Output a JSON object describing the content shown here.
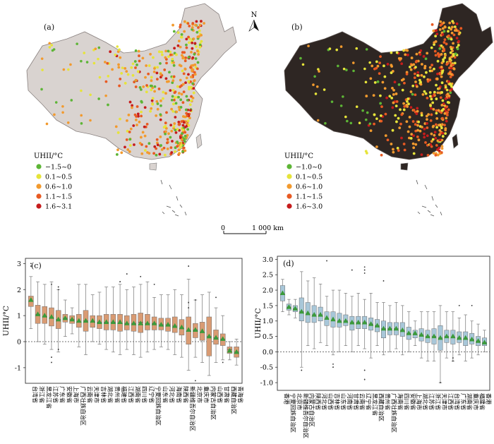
{
  "maps": [
    {
      "label": "(a)",
      "background": "#d9d3d0",
      "legend_title": "UHII/°C",
      "legend": [
        {
          "label": "−1.5~0",
          "color": "#5db536"
        },
        {
          "label": "0.1~0.5",
          "color": "#e6e43a"
        },
        {
          "label": "0.6~1.0",
          "color": "#f29a2e"
        },
        {
          "label": "1.1~1.5",
          "color": "#e85a22"
        },
        {
          "label": "1.6~3.1",
          "color": "#c61c1c"
        }
      ]
    },
    {
      "label": "(b)",
      "background": "#2e2623",
      "legend_title": "UHII/°C",
      "legend": [
        {
          "label": "−1.0~0",
          "color": "#5db536"
        },
        {
          "label": "0.1~0.5",
          "color": "#e6e43a"
        },
        {
          "label": "0.6~1.0",
          "color": "#f29a2e"
        },
        {
          "label": "1.1~1.5",
          "color": "#e85a22"
        },
        {
          "label": "1.6~3.0",
          "color": "#c61c1c"
        }
      ]
    }
  ],
  "north_label": "N",
  "scale_bar": {
    "start": "0",
    "end": "1 000 km"
  },
  "chart_data": [
    {
      "type": "box",
      "label": "(c)",
      "ylabel": "UHII/°C",
      "ylim": [
        -1.6,
        3.2
      ],
      "yticks": [
        -1,
        0,
        1,
        2,
        3
      ],
      "box_color": "#d99b73",
      "mean_color": "#3a9a3a",
      "categories": [
        "台湾省",
        "浙江省",
        "黑龙江省",
        "江苏省",
        "广东省",
        "安徽省",
        "上海市",
        "广西壮族自治区",
        "云南省",
        "天津市",
        "吉林省",
        "湖北省",
        "贵州省",
        "福建省",
        "江西省",
        "湖南省",
        "四川省",
        "辽宁省",
        "宁夏回族自治区",
        "山东省",
        "河北省",
        "海南省",
        "陕西省",
        "新疆维吾尔自治区",
        "北京市",
        "重庆市",
        "内蒙古自治区",
        "山西省",
        "甘肃省",
        "西藏自治区",
        "青海省"
      ],
      "boxes": [
        {
          "q1": 1.35,
          "median": 1.55,
          "q3": 1.75,
          "mean": 1.6,
          "low": 0.5,
          "high": 2.5
        },
        {
          "q1": 0.7,
          "median": 1.05,
          "q3": 1.4,
          "mean": 1.05,
          "low": 0.0,
          "high": 2.3
        },
        {
          "q1": 0.7,
          "median": 0.95,
          "q3": 1.35,
          "mean": 1.0,
          "low": -0.1,
          "high": 2.2
        },
        {
          "q1": 0.6,
          "median": 0.9,
          "q3": 1.3,
          "mean": 0.95,
          "low": -0.3,
          "high": 2.3
        },
        {
          "q1": 0.5,
          "median": 0.85,
          "q3": 1.2,
          "mean": 0.85,
          "low": -0.4,
          "high": 2.0
        },
        {
          "q1": 0.75,
          "median": 0.9,
          "q3": 1.05,
          "mean": 0.9,
          "low": 0.2,
          "high": 1.6
        },
        {
          "q1": 0.7,
          "median": 0.85,
          "q3": 1.0,
          "mean": 0.85,
          "low": 0.3,
          "high": 1.3
        },
        {
          "q1": 0.55,
          "median": 0.75,
          "q3": 1.05,
          "mean": 0.8,
          "low": -0.2,
          "high": 2.2
        },
        {
          "q1": 0.4,
          "median": 0.8,
          "q3": 1.2,
          "mean": 0.8,
          "low": -0.5,
          "high": 2.2
        },
        {
          "q1": 0.55,
          "median": 0.75,
          "q3": 1.0,
          "mean": 0.8,
          "low": 0.0,
          "high": 1.8
        },
        {
          "q1": 0.5,
          "median": 0.75,
          "q3": 1.0,
          "mean": 0.75,
          "low": -0.1,
          "high": 1.9
        },
        {
          "q1": 0.45,
          "median": 0.75,
          "q3": 1.05,
          "mean": 0.75,
          "low": -0.3,
          "high": 2.1
        },
        {
          "q1": 0.45,
          "median": 0.75,
          "q3": 1.05,
          "mean": 0.75,
          "low": -0.4,
          "high": 2.1
        },
        {
          "q1": 0.4,
          "median": 0.7,
          "q3": 1.05,
          "mean": 0.75,
          "low": -0.5,
          "high": 2.2
        },
        {
          "q1": 0.45,
          "median": 0.7,
          "q3": 1.0,
          "mean": 0.7,
          "low": -0.3,
          "high": 2.0
        },
        {
          "q1": 0.4,
          "median": 0.7,
          "q3": 1.05,
          "mean": 0.7,
          "low": -0.5,
          "high": 2.1
        },
        {
          "q1": 0.35,
          "median": 0.75,
          "q3": 1.1,
          "mean": 0.7,
          "low": -0.6,
          "high": 2.2
        },
        {
          "q1": 0.45,
          "median": 0.7,
          "q3": 1.05,
          "mean": 0.7,
          "low": -0.4,
          "high": 2.3
        },
        {
          "q1": 0.45,
          "median": 0.7,
          "q3": 0.95,
          "mean": 0.7,
          "low": -0.3,
          "high": 1.7
        },
        {
          "q1": 0.45,
          "median": 0.65,
          "q3": 0.9,
          "mean": 0.65,
          "low": -0.2,
          "high": 1.8
        },
        {
          "q1": 0.4,
          "median": 0.65,
          "q3": 0.9,
          "mean": 0.65,
          "low": -0.3,
          "high": 1.8
        },
        {
          "q1": 0.35,
          "median": 0.6,
          "q3": 0.95,
          "mean": 0.6,
          "low": -0.5,
          "high": 2.0
        },
        {
          "q1": 0.25,
          "median": 0.5,
          "q3": 0.85,
          "mean": 0.55,
          "low": -0.6,
          "high": 1.8
        },
        {
          "q1": -0.1,
          "median": 0.4,
          "q3": 0.95,
          "mean": 0.45,
          "low": -1.1,
          "high": 2.4
        },
        {
          "q1": 0.15,
          "median": 0.45,
          "q3": 0.7,
          "mean": 0.45,
          "low": -0.6,
          "high": 1.6
        },
        {
          "q1": 0.05,
          "median": 0.35,
          "q3": 0.75,
          "mean": 0.4,
          "low": -0.8,
          "high": 1.8
        },
        {
          "q1": -0.55,
          "median": 0.2,
          "q3": 0.95,
          "mean": 0.2,
          "low": -1.3,
          "high": 1.9
        },
        {
          "q1": -0.1,
          "median": 0.15,
          "q3": 0.45,
          "mean": 0.15,
          "low": -0.8,
          "high": 1.3
        },
        {
          "q1": -0.15,
          "median": 0.1,
          "q3": 0.3,
          "mean": 0.1,
          "low": -0.7,
          "high": 1.0
        },
        {
          "q1": -0.45,
          "median": -0.3,
          "q3": -0.2,
          "mean": -0.35,
          "low": -0.7,
          "high": 0.0
        },
        {
          "q1": -0.6,
          "median": -0.4,
          "q3": -0.2,
          "mean": -0.4,
          "low": -0.9,
          "high": 0.1
        }
      ],
      "outliers": [
        [
          0,
          3.0
        ],
        [
          0,
          2.9
        ],
        [
          3,
          2.2
        ],
        [
          3,
          -0.6
        ],
        [
          3,
          -0.8
        ],
        [
          4,
          2.1
        ],
        [
          4,
          2.0
        ],
        [
          4,
          -0.3
        ],
        [
          13,
          2.3
        ],
        [
          14,
          2.6
        ],
        [
          16,
          2.5
        ],
        [
          18,
          2.2
        ],
        [
          23,
          2.9
        ],
        [
          23,
          1.5
        ],
        [
          23,
          1.3
        ],
        [
          24,
          -1.5
        ],
        [
          24,
          1.6
        ],
        [
          27,
          1.7
        ],
        [
          28,
          -0.8
        ]
      ]
    },
    {
      "type": "box",
      "label": "(d)",
      "ylabel": "UHII/°C",
      "ylim": [
        -1.25,
        3.1
      ],
      "yticks": [
        -1.0,
        -0.5,
        0,
        0.5,
        1.0,
        1.5,
        2.0,
        2.5,
        3.0
      ],
      "box_color": "#a8c7d9",
      "mean_color": "#3a9a3a",
      "categories": [
        "香港",
        "宁夏回族自治区",
        "北京市",
        "新疆维吾尔自治区",
        "内蒙古自治区",
        "陕西省",
        "河北省",
        "山西省",
        "吉林省",
        "山东省",
        "河南省",
        "甘肃省",
        "云南省",
        "辽宁省",
        "黑龙江省",
        "西藏自治区",
        "贵州省",
        "广西壮族自治区",
        "海南省",
        "四川省",
        "安徽省",
        "上海市",
        "湖北省",
        "江苏省",
        "浙江省",
        "天津市",
        "江西省",
        "台湾省",
        "广东省",
        "湖南省",
        "重庆市",
        "福建省",
        "香港"
      ],
      "boxes": [
        {
          "q1": 1.65,
          "median": 1.85,
          "q3": 2.15,
          "mean": 1.9,
          "low": 1.3,
          "high": 2.35
        },
        {
          "q1": 1.35,
          "median": 1.45,
          "q3": 1.55,
          "mean": 1.45,
          "low": 1.2,
          "high": 1.7
        },
        {
          "q1": 1.3,
          "median": 1.4,
          "q3": 1.5,
          "mean": 1.4,
          "low": 1.1,
          "high": 1.7
        },
        {
          "q1": 1.0,
          "median": 1.3,
          "q3": 1.75,
          "mean": 1.3,
          "low": -0.5,
          "high": 2.6
        },
        {
          "q1": 0.95,
          "median": 1.2,
          "q3": 1.6,
          "mean": 1.25,
          "low": 0.2,
          "high": 2.3
        },
        {
          "q1": 0.95,
          "median": 1.2,
          "q3": 1.5,
          "mean": 1.2,
          "low": 0.1,
          "high": 2.4
        },
        {
          "q1": 1.0,
          "median": 1.2,
          "q3": 1.45,
          "mean": 1.2,
          "low": 0.3,
          "high": 2.2
        },
        {
          "q1": 0.85,
          "median": 1.05,
          "q3": 1.3,
          "mean": 1.1,
          "low": 0.2,
          "high": 1.8
        },
        {
          "q1": 0.8,
          "median": 1.0,
          "q3": 1.3,
          "mean": 1.05,
          "low": -0.1,
          "high": 2.0
        },
        {
          "q1": 0.8,
          "median": 1.0,
          "q3": 1.25,
          "mean": 1.0,
          "low": 0.0,
          "high": 2.0
        },
        {
          "q1": 0.85,
          "median": 1.0,
          "q3": 1.2,
          "mean": 1.0,
          "low": 0.2,
          "high": 1.9
        },
        {
          "q1": 0.7,
          "median": 0.95,
          "q3": 1.15,
          "mean": 0.95,
          "low": 0.0,
          "high": 1.8
        },
        {
          "q1": 0.75,
          "median": 0.95,
          "q3": 1.15,
          "mean": 0.95,
          "low": 0.2,
          "high": 1.9
        },
        {
          "q1": 0.75,
          "median": 0.95,
          "q3": 1.15,
          "mean": 0.95,
          "low": 0.1,
          "high": 1.7
        },
        {
          "q1": 0.7,
          "median": 0.9,
          "q3": 1.1,
          "mean": 0.9,
          "low": -0.2,
          "high": 1.9
        },
        {
          "q1": 0.65,
          "median": 0.85,
          "q3": 1.05,
          "mean": 0.85,
          "low": 0.2,
          "high": 1.6
        },
        {
          "q1": 0.45,
          "median": 0.75,
          "q3": 1.0,
          "mean": 0.75,
          "low": -0.1,
          "high": 1.6
        },
        {
          "q1": 0.55,
          "median": 0.75,
          "q3": 0.95,
          "mean": 0.75,
          "low": 0.0,
          "high": 1.5
        },
        {
          "q1": 0.55,
          "median": 0.75,
          "q3": 0.95,
          "mean": 0.75,
          "low": 0.1,
          "high": 1.6
        },
        {
          "q1": 0.5,
          "median": 0.7,
          "q3": 0.95,
          "mean": 0.7,
          "low": -0.1,
          "high": 1.5
        },
        {
          "q1": 0.4,
          "median": 0.6,
          "q3": 0.8,
          "mean": 0.6,
          "low": 0.0,
          "high": 1.3
        },
        {
          "q1": 0.45,
          "median": 0.55,
          "q3": 0.7,
          "mean": 0.6,
          "low": 0.2,
          "high": 1.0
        },
        {
          "q1": 0.35,
          "median": 0.55,
          "q3": 0.75,
          "mean": 0.55,
          "low": -0.2,
          "high": 1.3
        },
        {
          "q1": 0.3,
          "median": 0.5,
          "q3": 0.7,
          "mean": 0.5,
          "low": -0.3,
          "high": 1.3
        },
        {
          "q1": 0.25,
          "median": 0.5,
          "q3": 0.75,
          "mean": 0.5,
          "low": -0.3,
          "high": 1.3
        },
        {
          "q1": 0.05,
          "median": 0.45,
          "q3": 0.85,
          "mean": 0.45,
          "low": -1.0,
          "high": 1.5
        },
        {
          "q1": 0.3,
          "median": 0.5,
          "q3": 0.7,
          "mean": 0.5,
          "low": -0.2,
          "high": 1.3
        },
        {
          "q1": 0.25,
          "median": 0.45,
          "q3": 0.7,
          "mean": 0.5,
          "low": -0.3,
          "high": 1.3
        },
        {
          "q1": 0.3,
          "median": 0.45,
          "q3": 0.65,
          "mean": 0.45,
          "low": -0.1,
          "high": 1.1
        },
        {
          "q1": 0.2,
          "median": 0.4,
          "q3": 0.65,
          "mean": 0.45,
          "low": -0.3,
          "high": 1.2
        },
        {
          "q1": 0.25,
          "median": 0.4,
          "q3": 0.6,
          "mean": 0.4,
          "low": -0.2,
          "high": 1.0
        },
        {
          "q1": 0.2,
          "median": 0.35,
          "q3": 0.5,
          "mean": 0.35,
          "low": -0.1,
          "high": 0.9
        },
        {
          "q1": 0.2,
          "median": 0.3,
          "q3": 0.45,
          "mean": 0.3,
          "low": 0.0,
          "high": 0.7
        }
      ],
      "outliers": [
        [
          7,
          2.95
        ],
        [
          11,
          2.65
        ],
        [
          13,
          2.75
        ],
        [
          13,
          2.65
        ],
        [
          13,
          2.55
        ],
        [
          13,
          -0.6
        ],
        [
          13,
          -0.9
        ],
        [
          8,
          -0.4
        ],
        [
          8,
          -0.5
        ],
        [
          3,
          -0.6
        ],
        [
          25,
          -1.0
        ],
        [
          27,
          -0.2
        ],
        [
          27,
          -0.3
        ],
        [
          28,
          1.5
        ],
        [
          30,
          1.5
        ],
        [
          16,
          2.3
        ]
      ]
    }
  ]
}
